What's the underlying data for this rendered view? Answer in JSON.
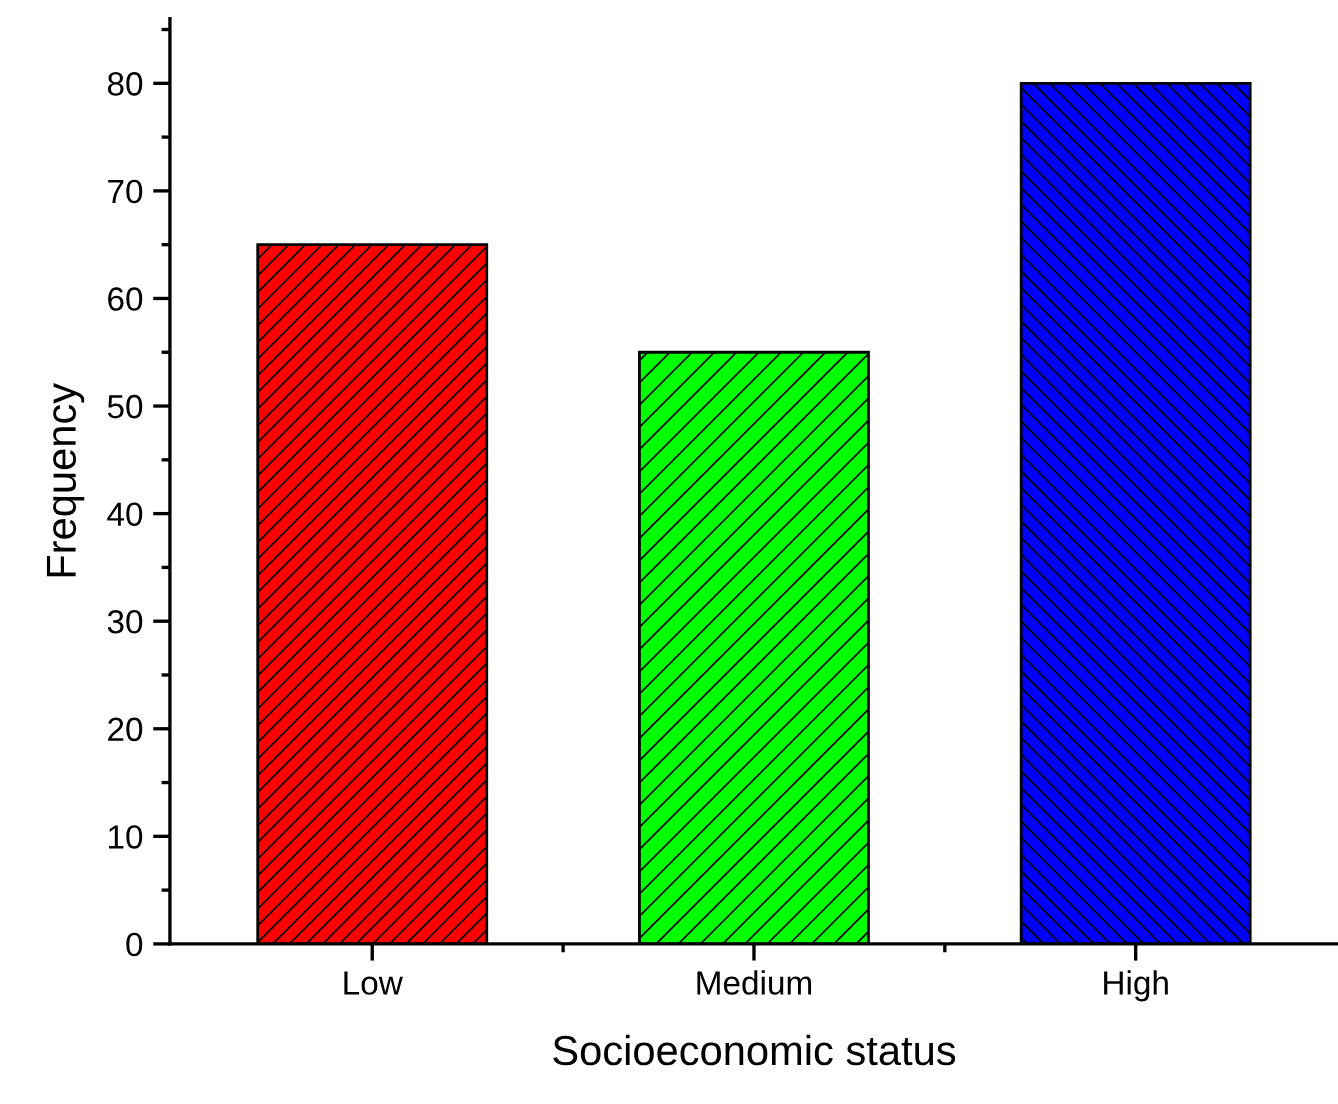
{
  "chart_data": {
    "type": "bar",
    "xlabel": "Socioeconomic status",
    "ylabel": "Frequency",
    "categories": [
      "Low",
      "Medium",
      "High"
    ],
    "values": [
      65,
      55,
      80
    ],
    "colors": [
      "#ff0000",
      "#00ff00",
      "#0000ff"
    ],
    "ylim": [
      0,
      86
    ],
    "yticks": [
      0,
      10,
      20,
      30,
      40,
      50,
      60,
      70,
      80
    ],
    "grid": false,
    "legend": false
  }
}
